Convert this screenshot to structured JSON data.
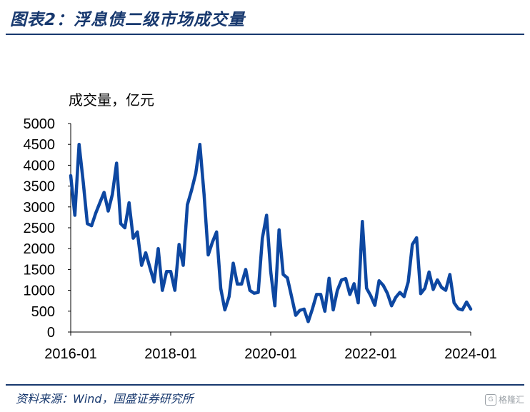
{
  "header": {
    "title": "图表2：浮息债二级市场成交量"
  },
  "footer": {
    "source": "资料来源：Wind，国盛证券研究所",
    "watermark": "格隆汇"
  },
  "chart_data": {
    "type": "line",
    "title": "",
    "ylabel": "成交量，亿元",
    "xlabel": "",
    "ylim": [
      0,
      5000
    ],
    "yticks": [
      "0",
      "500",
      "1000",
      "1500",
      "2000",
      "2500",
      "3000",
      "3500",
      "4000",
      "4500",
      "5000"
    ],
    "xticks": [
      "2016-01",
      "2018-01",
      "2020-01",
      "2022-01",
      "2024-01"
    ],
    "xtick_months": [
      0,
      24,
      48,
      72,
      96
    ],
    "xlim_months": [
      0,
      96
    ],
    "grid": false,
    "legend": "none",
    "line_color": "#0d47a1",
    "series": [
      {
        "name": "",
        "x_months": [
          0,
          1,
          2,
          3,
          4,
          5,
          6,
          7,
          8,
          9,
          10,
          11,
          12,
          13,
          14,
          15,
          16,
          17,
          18,
          19,
          20,
          21,
          22,
          23,
          24,
          25,
          26,
          27,
          28,
          29,
          30,
          31,
          32,
          33,
          34,
          35,
          36,
          37,
          38,
          39,
          40,
          41,
          42,
          43,
          44,
          45,
          46,
          47,
          48,
          49,
          50,
          51,
          52,
          53,
          54,
          55,
          56,
          57,
          58,
          59,
          60,
          61,
          62,
          63,
          64,
          65,
          66,
          67,
          68,
          69,
          70,
          71,
          72,
          73,
          74,
          75,
          76,
          77,
          78,
          79,
          80,
          81,
          82,
          83,
          84,
          85,
          86,
          87,
          88,
          89,
          90,
          91,
          92,
          93,
          94,
          95,
          96
        ],
        "values": [
          3750,
          2800,
          4500,
          3600,
          2600,
          2550,
          2850,
          3100,
          3350,
          2900,
          3300,
          4050,
          2600,
          2500,
          3100,
          2250,
          2400,
          1600,
          1900,
          1550,
          1200,
          2000,
          1000,
          1450,
          1450,
          1000,
          2100,
          1600,
          3050,
          3400,
          3800,
          4500,
          3300,
          1850,
          2150,
          2400,
          1050,
          530,
          850,
          1650,
          1150,
          1150,
          1500,
          1000,
          930,
          950,
          2250,
          2800,
          1450,
          630,
          2450,
          1380,
          1300,
          850,
          400,
          520,
          550,
          250,
          550,
          900,
          900,
          500,
          1290,
          530,
          1000,
          1250,
          1280,
          900,
          1160,
          700,
          2650,
          1050,
          870,
          640,
          1230,
          1120,
          930,
          630,
          830,
          950,
          850,
          1200,
          2100,
          2260,
          920,
          1050,
          1440,
          1020,
          1250,
          1070,
          1000,
          1380,
          700,
          560,
          530,
          720,
          550
        ]
      }
    ]
  }
}
